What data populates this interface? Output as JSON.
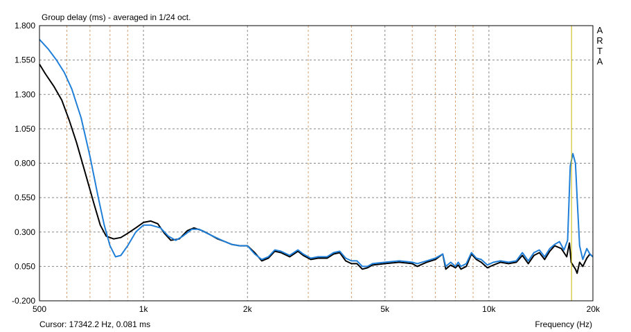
{
  "chart_data": {
    "type": "line",
    "title": "Group delay (ms) - averaged in 1/24 oct.",
    "xlabel": "Frequency (Hz)",
    "ylabel": "",
    "x_scale": "log",
    "xlim": [
      500,
      20000
    ],
    "ylim": [
      -0.2,
      1.8
    ],
    "y_ticks": [
      "1.800",
      "1.550",
      "1.300",
      "1.050",
      "0.800",
      "0.550",
      "0.300",
      "0.050",
      "-0.200"
    ],
    "y_tick_values": [
      1.8,
      1.55,
      1.3,
      1.05,
      0.8,
      0.55,
      0.3,
      0.05,
      -0.2
    ],
    "x_ticks": [
      {
        "value": 500,
        "label": "500"
      },
      {
        "value": 1000,
        "label": "1k"
      },
      {
        "value": 2000,
        "label": "2k"
      },
      {
        "value": 5000,
        "label": "5k"
      },
      {
        "value": 10000,
        "label": "10k"
      },
      {
        "value": 20000,
        "label": "20k"
      }
    ],
    "x_minor": [
      600,
      700,
      800,
      900,
      3000,
      4000,
      6000,
      7000,
      8000,
      9000
    ],
    "x_major_dashed": [
      1000,
      2000,
      5000,
      10000
    ],
    "grid": true,
    "cursor": {
      "x": 17342.2,
      "y": 0.081,
      "color": "#c8b400"
    },
    "series": [
      {
        "color": "#000000",
        "points": [
          [
            500,
            1.52
          ],
          [
            520,
            1.45
          ],
          [
            550,
            1.36
          ],
          [
            580,
            1.26
          ],
          [
            610,
            1.11
          ],
          [
            640,
            0.95
          ],
          [
            680,
            0.72
          ],
          [
            720,
            0.5
          ],
          [
            750,
            0.35
          ],
          [
            780,
            0.27
          ],
          [
            820,
            0.25
          ],
          [
            860,
            0.26
          ],
          [
            900,
            0.29
          ],
          [
            950,
            0.33
          ],
          [
            1000,
            0.37
          ],
          [
            1050,
            0.38
          ],
          [
            1100,
            0.36
          ],
          [
            1150,
            0.29
          ],
          [
            1200,
            0.24
          ],
          [
            1270,
            0.25
          ],
          [
            1340,
            0.31
          ],
          [
            1400,
            0.33
          ],
          [
            1480,
            0.31
          ],
          [
            1560,
            0.28
          ],
          [
            1640,
            0.25
          ],
          [
            1720,
            0.23
          ],
          [
            1800,
            0.21
          ],
          [
            1900,
            0.2
          ],
          [
            2000,
            0.2
          ],
          [
            2100,
            0.15
          ],
          [
            2200,
            0.09
          ],
          [
            2300,
            0.11
          ],
          [
            2400,
            0.16
          ],
          [
            2500,
            0.15
          ],
          [
            2650,
            0.12
          ],
          [
            2800,
            0.16
          ],
          [
            2900,
            0.13
          ],
          [
            3050,
            0.1
          ],
          [
            3200,
            0.11
          ],
          [
            3400,
            0.11
          ],
          [
            3550,
            0.14
          ],
          [
            3700,
            0.15
          ],
          [
            3850,
            0.09
          ],
          [
            4000,
            0.07
          ],
          [
            4150,
            0.07
          ],
          [
            4300,
            0.03
          ],
          [
            4450,
            0.04
          ],
          [
            4600,
            0.06
          ],
          [
            5000,
            0.07
          ],
          [
            5500,
            0.08
          ],
          [
            6000,
            0.07
          ],
          [
            6200,
            0.05
          ],
          [
            6600,
            0.08
          ],
          [
            7000,
            0.1
          ],
          [
            7350,
            0.14
          ],
          [
            7500,
            0.03
          ],
          [
            7750,
            0.06
          ],
          [
            8000,
            0.04
          ],
          [
            8150,
            0.06
          ],
          [
            8300,
            0.03
          ],
          [
            8600,
            0.05
          ],
          [
            8900,
            0.14
          ],
          [
            9200,
            0.1
          ],
          [
            9500,
            0.08
          ],
          [
            9900,
            0.04
          ],
          [
            10300,
            0.06
          ],
          [
            10800,
            0.08
          ],
          [
            11400,
            0.07
          ],
          [
            12000,
            0.08
          ],
          [
            12500,
            0.13
          ],
          [
            13000,
            0.07
          ],
          [
            13500,
            0.13
          ],
          [
            14000,
            0.15
          ],
          [
            14500,
            0.1
          ],
          [
            15000,
            0.16
          ],
          [
            15500,
            0.2
          ],
          [
            16200,
            0.18
          ],
          [
            16800,
            0.12
          ],
          [
            17100,
            0.22
          ],
          [
            17300,
            0.08
          ],
          [
            17500,
            0.06
          ],
          [
            17800,
            0.03
          ],
          [
            18000,
            0.0
          ],
          [
            18300,
            0.08
          ],
          [
            18700,
            0.05
          ],
          [
            19200,
            0.11
          ],
          [
            19600,
            0.14
          ],
          [
            20000,
            0.12
          ]
        ]
      },
      {
        "color": "#1f7fd8",
        "points": [
          [
            500,
            1.7
          ],
          [
            530,
            1.63
          ],
          [
            560,
            1.55
          ],
          [
            590,
            1.46
          ],
          [
            620,
            1.34
          ],
          [
            660,
            1.13
          ],
          [
            700,
            0.85
          ],
          [
            740,
            0.55
          ],
          [
            770,
            0.35
          ],
          [
            800,
            0.2
          ],
          [
            830,
            0.12
          ],
          [
            860,
            0.13
          ],
          [
            900,
            0.2
          ],
          [
            950,
            0.3
          ],
          [
            1000,
            0.35
          ],
          [
            1050,
            0.35
          ],
          [
            1120,
            0.33
          ],
          [
            1180,
            0.27
          ],
          [
            1240,
            0.24
          ],
          [
            1300,
            0.27
          ],
          [
            1380,
            0.32
          ],
          [
            1450,
            0.32
          ],
          [
            1530,
            0.29
          ],
          [
            1620,
            0.26
          ],
          [
            1720,
            0.23
          ],
          [
            1800,
            0.21
          ],
          [
            1900,
            0.2
          ],
          [
            2000,
            0.2
          ],
          [
            2100,
            0.14
          ],
          [
            2200,
            0.1
          ],
          [
            2300,
            0.12
          ],
          [
            2400,
            0.17
          ],
          [
            2500,
            0.16
          ],
          [
            2650,
            0.13
          ],
          [
            2800,
            0.17
          ],
          [
            2900,
            0.14
          ],
          [
            3050,
            0.11
          ],
          [
            3200,
            0.12
          ],
          [
            3400,
            0.12
          ],
          [
            3550,
            0.15
          ],
          [
            3700,
            0.16
          ],
          [
            3850,
            0.11
          ],
          [
            4000,
            0.09
          ],
          [
            4150,
            0.09
          ],
          [
            4300,
            0.05
          ],
          [
            4450,
            0.05
          ],
          [
            4600,
            0.07
          ],
          [
            5000,
            0.08
          ],
          [
            5500,
            0.09
          ],
          [
            6000,
            0.08
          ],
          [
            6200,
            0.07
          ],
          [
            6600,
            0.09
          ],
          [
            7000,
            0.11
          ],
          [
            7350,
            0.14
          ],
          [
            7500,
            0.05
          ],
          [
            7750,
            0.08
          ],
          [
            8000,
            0.05
          ],
          [
            8150,
            0.08
          ],
          [
            8300,
            0.05
          ],
          [
            8600,
            0.07
          ],
          [
            8900,
            0.15
          ],
          [
            9200,
            0.11
          ],
          [
            9500,
            0.1
          ],
          [
            9900,
            0.06
          ],
          [
            10300,
            0.08
          ],
          [
            10800,
            0.09
          ],
          [
            11400,
            0.08
          ],
          [
            12000,
            0.09
          ],
          [
            12500,
            0.15
          ],
          [
            13000,
            0.09
          ],
          [
            13500,
            0.15
          ],
          [
            14000,
            0.17
          ],
          [
            14500,
            0.12
          ],
          [
            15000,
            0.18
          ],
          [
            15500,
            0.21
          ],
          [
            16000,
            0.23
          ],
          [
            16500,
            0.17
          ],
          [
            16900,
            0.24
          ],
          [
            17200,
            0.78
          ],
          [
            17500,
            0.87
          ],
          [
            17800,
            0.8
          ],
          [
            18000,
            0.55
          ],
          [
            18300,
            0.2
          ],
          [
            18700,
            0.1
          ],
          [
            19200,
            0.18
          ],
          [
            19600,
            0.14
          ],
          [
            20000,
            0.12
          ]
        ]
      }
    ]
  },
  "header": {
    "title": "Group delay (ms) - averaged in 1/24 oct."
  },
  "footer": {
    "cursor_readout": "Cursor: 17342.2 Hz, 0.081 ms",
    "x_axis_label": "Frequency (Hz)"
  },
  "watermark": {
    "letters": [
      "A",
      "R",
      "T",
      "A"
    ]
  }
}
